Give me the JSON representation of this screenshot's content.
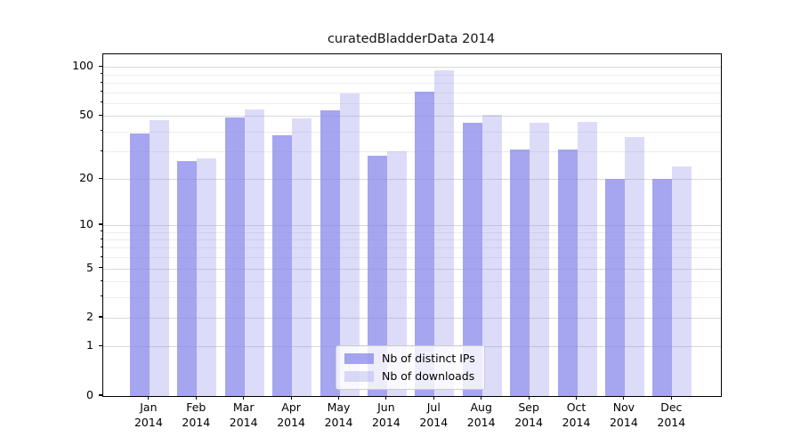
{
  "chart_data": {
    "type": "bar",
    "title": "curatedBladderData 2014",
    "categories": [
      "Jan",
      "Feb",
      "Mar",
      "Apr",
      "May",
      "Jun",
      "Jul",
      "Aug",
      "Sep",
      "Oct",
      "Nov",
      "Dec"
    ],
    "category_year": "2014",
    "series": [
      {
        "name": "Nb of distinct IPs",
        "color": "rgba(130,130,234,0.72)",
        "color_hex": "#a5a5ef",
        "values": [
          39,
          26,
          49,
          38,
          54,
          28,
          71,
          45,
          31,
          31,
          20,
          20
        ]
      },
      {
        "name": "Nb of downloads",
        "color": "rgba(130,130,234,0.28)",
        "color_hex": "#dcdcf9",
        "values": [
          47,
          27,
          55,
          48,
          69,
          30,
          96,
          51,
          45,
          46,
          37,
          24
        ]
      }
    ],
    "xlabel": "",
    "ylabel": "",
    "yscale": "log10(1+x)",
    "ylim": [
      0,
      119
    ],
    "y_major_ticks": [
      100,
      50,
      20,
      10,
      5,
      2,
      1,
      0
    ],
    "y_minor_ticks": [
      3,
      4,
      6,
      7,
      8,
      9,
      30,
      40,
      60,
      70,
      80,
      90
    ],
    "grid": true,
    "legend_position": "lower center",
    "colors": {
      "bar_base": "#8282ea",
      "grid_major": "#d9d9d9",
      "grid_minor": "#ededed",
      "axis": "#000000",
      "text": "#000000"
    }
  }
}
